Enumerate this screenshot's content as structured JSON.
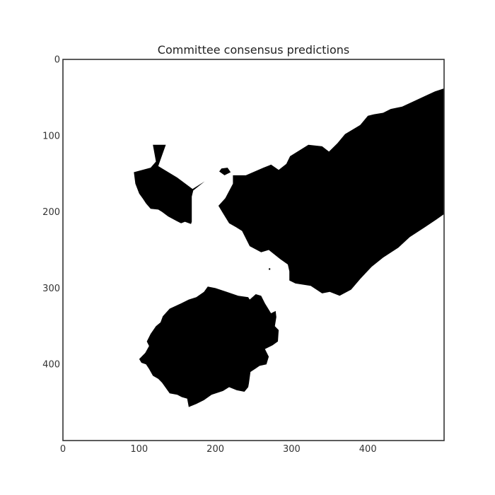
{
  "chart_data": {
    "type": "heatmap",
    "title": "Committee consensus predictions",
    "xlabel": "",
    "ylabel": "",
    "xlim": [
      0,
      500
    ],
    "ylim": [
      500,
      0
    ],
    "x_ticks": [
      0,
      100,
      200,
      300,
      400
    ],
    "y_ticks": [
      0,
      100,
      200,
      300,
      400
    ],
    "grid": false,
    "colormap": {
      "0": "#ffffff",
      "1": "#000000"
    },
    "mask_regions": [
      {
        "name": "left-blob",
        "value": 1,
        "polygon": [
          [
            118,
            112
          ],
          [
            135,
            112
          ],
          [
            125,
            140
          ],
          [
            150,
            155
          ],
          [
            170,
            170
          ],
          [
            186,
            160
          ],
          [
            171,
            172
          ],
          [
            169,
            180
          ],
          [
            169,
            213
          ],
          [
            168,
            216
          ],
          [
            160,
            213
          ],
          [
            155,
            215
          ],
          [
            149,
            212
          ],
          [
            138,
            206
          ],
          [
            130,
            200
          ],
          [
            125,
            197
          ],
          [
            115,
            196
          ],
          [
            109,
            189
          ],
          [
            105,
            183
          ],
          [
            100,
            176
          ],
          [
            95,
            163
          ],
          [
            93,
            148
          ],
          [
            115,
            142
          ],
          [
            122,
            134
          ]
        ]
      },
      {
        "name": "small-speck",
        "value": 1,
        "polygon": [
          [
            208,
            143
          ],
          [
            216,
            142
          ],
          [
            220,
            148
          ],
          [
            212,
            152
          ],
          [
            205,
            147
          ]
        ]
      },
      {
        "name": "tiny-dot",
        "value": 1,
        "polygon": [
          [
            270,
            274
          ],
          [
            272,
            274
          ],
          [
            272,
            276
          ],
          [
            270,
            276
          ]
        ]
      },
      {
        "name": "right-mass",
        "value": 1,
        "polygon": [
          [
            223,
            152
          ],
          [
            240,
            152
          ],
          [
            263,
            142
          ],
          [
            273,
            138
          ],
          [
            283,
            145
          ],
          [
            293,
            137
          ],
          [
            298,
            127
          ],
          [
            322,
            112
          ],
          [
            340,
            114
          ],
          [
            349,
            121
          ],
          [
            360,
            110
          ],
          [
            370,
            98
          ],
          [
            390,
            86
          ],
          [
            400,
            74
          ],
          [
            408,
            72
          ],
          [
            420,
            70
          ],
          [
            430,
            65
          ],
          [
            445,
            62
          ],
          [
            460,
            55
          ],
          [
            475,
            48
          ],
          [
            488,
            42
          ],
          [
            500,
            38
          ],
          [
            500,
            203
          ],
          [
            490,
            210
          ],
          [
            475,
            220
          ],
          [
            455,
            233
          ],
          [
            440,
            247
          ],
          [
            420,
            260
          ],
          [
            405,
            272
          ],
          [
            390,
            288
          ],
          [
            378,
            302
          ],
          [
            363,
            310
          ],
          [
            355,
            307
          ],
          [
            350,
            305
          ],
          [
            340,
            307
          ],
          [
            325,
            297
          ],
          [
            305,
            294
          ],
          [
            297,
            290
          ],
          [
            297,
            278
          ],
          [
            295,
            269
          ],
          [
            285,
            262
          ],
          [
            270,
            250
          ],
          [
            260,
            253
          ],
          [
            245,
            245
          ],
          [
            235,
            225
          ],
          [
            227,
            220
          ],
          [
            218,
            215
          ],
          [
            210,
            202
          ],
          [
            204,
            192
          ],
          [
            213,
            182
          ],
          [
            223,
            163
          ]
        ]
      },
      {
        "name": "bottom-blob",
        "value": 1,
        "polygon": [
          [
            190,
            298
          ],
          [
            200,
            300
          ],
          [
            215,
            305
          ],
          [
            230,
            310
          ],
          [
            243,
            312
          ],
          [
            245,
            315
          ],
          [
            253,
            308
          ],
          [
            260,
            310
          ],
          [
            265,
            320
          ],
          [
            273,
            333
          ],
          [
            279,
            330
          ],
          [
            280,
            338
          ],
          [
            278,
            350
          ],
          [
            283,
            355
          ],
          [
            282,
            370
          ],
          [
            275,
            375
          ],
          [
            265,
            380
          ],
          [
            270,
            390
          ],
          [
            267,
            400
          ],
          [
            258,
            402
          ],
          [
            252,
            406
          ],
          [
            246,
            410
          ],
          [
            244,
            425
          ],
          [
            243,
            430
          ],
          [
            238,
            436
          ],
          [
            228,
            434
          ],
          [
            218,
            430
          ],
          [
            210,
            435
          ],
          [
            195,
            440
          ],
          [
            185,
            447
          ],
          [
            175,
            452
          ],
          [
            165,
            456
          ],
          [
            163,
            445
          ],
          [
            156,
            443
          ],
          [
            150,
            440
          ],
          [
            140,
            438
          ],
          [
            130,
            424
          ],
          [
            125,
            419
          ],
          [
            118,
            415
          ],
          [
            113,
            406
          ],
          [
            109,
            400
          ],
          [
            103,
            398
          ],
          [
            100,
            393
          ],
          [
            108,
            385
          ],
          [
            113,
            376
          ],
          [
            110,
            370
          ],
          [
            115,
            360
          ],
          [
            122,
            350
          ],
          [
            128,
            345
          ],
          [
            131,
            337
          ],
          [
            140,
            327
          ],
          [
            155,
            320
          ],
          [
            165,
            315
          ],
          [
            175,
            312
          ],
          [
            185,
            305
          ]
        ]
      }
    ]
  }
}
